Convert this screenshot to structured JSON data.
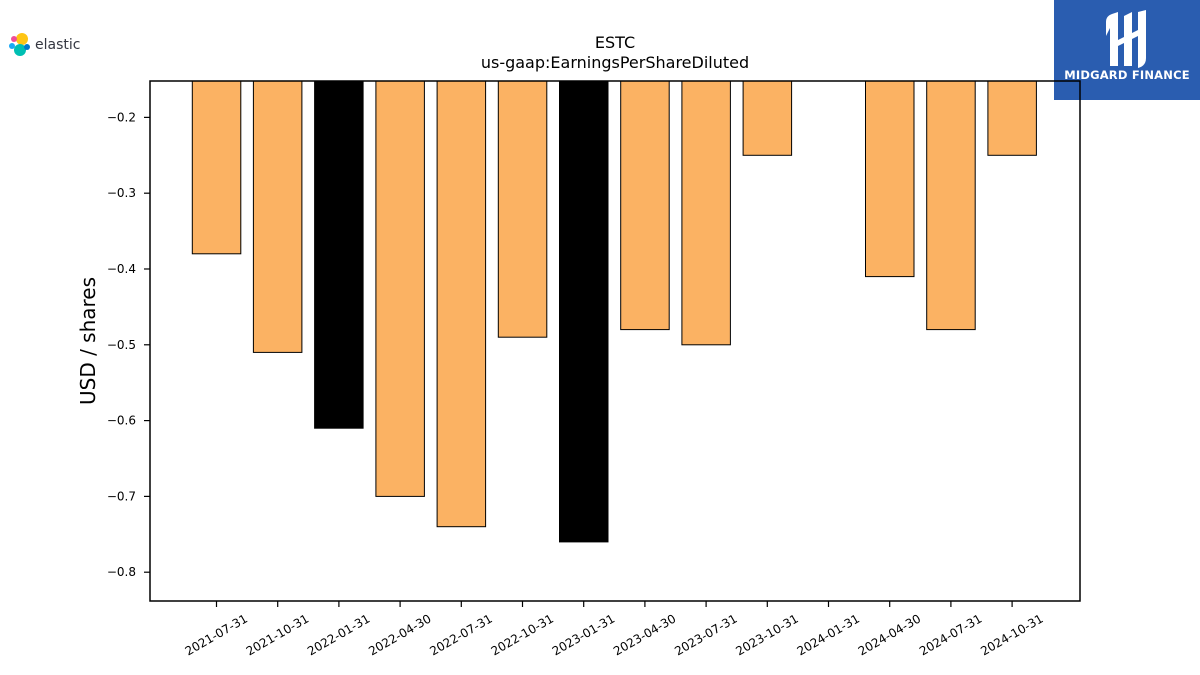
{
  "logos": {
    "left_text": "elastic",
    "right_text": "MIDGARD FINANCE",
    "right_bg": "#2a5db0"
  },
  "colors": {
    "bar_default": "#fbb263",
    "bar_highlight": "#000000",
    "bar_edge": "#000000"
  },
  "chart_data": {
    "type": "bar",
    "title": "ESTC",
    "subtitle": "us-gaap:EarningsPerShareDiluted",
    "xlabel": "",
    "ylabel": "USD / shares",
    "ylim": [
      -0.838,
      -0.152
    ],
    "yticks": [
      -0.2,
      -0.3,
      -0.4,
      -0.5,
      -0.6,
      -0.7,
      -0.8
    ],
    "ytick_labels": [
      "−0.2",
      "−0.3",
      "−0.4",
      "−0.5",
      "−0.6",
      "−0.7",
      "−0.8"
    ],
    "categories": [
      "2021-07-31",
      "2021-10-31",
      "2022-01-31",
      "2022-04-30",
      "2022-07-31",
      "2022-10-31",
      "2023-01-31",
      "2023-04-30",
      "2023-07-31",
      "2023-10-31",
      "2024-01-31",
      "2024-04-30",
      "2024-07-31",
      "2024-10-31"
    ],
    "values": [
      -0.38,
      -0.51,
      -0.61,
      -0.7,
      -0.74,
      -0.49,
      -0.76,
      -0.48,
      -0.5,
      -0.25,
      null,
      -0.41,
      -0.48,
      -0.25
    ],
    "highlight": [
      false,
      false,
      true,
      false,
      false,
      false,
      true,
      false,
      false,
      false,
      false,
      false,
      false,
      false
    ],
    "grid": false,
    "legend": "none"
  }
}
